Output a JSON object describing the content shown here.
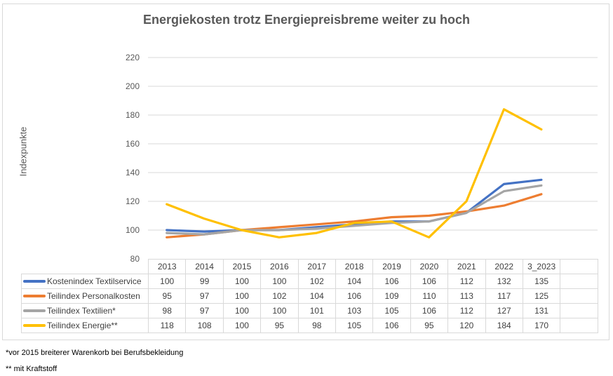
{
  "chart_data": {
    "type": "line",
    "title": "Energiekosten trotz Energiepreisbreme weiter zu hoch",
    "xlabel": "",
    "ylabel": "Indexpunkte",
    "ylim": [
      80,
      220
    ],
    "yticks": [
      80,
      100,
      120,
      140,
      160,
      180,
      200,
      220
    ],
    "ytick_labels": [
      "80",
      "100",
      "120",
      "140",
      "160",
      "180",
      "200",
      "220"
    ],
    "grid": true,
    "legend_placement": "data-table-below",
    "categories": [
      "2013",
      "2014",
      "2015",
      "2016",
      "2017",
      "2018",
      "2019",
      "2020",
      "2021",
      "2022",
      "3_2023",
      ""
    ],
    "series": [
      {
        "name": "Kostenindex Textilservice",
        "color": "#4472C4",
        "values": [
          100,
          99,
          100,
          100,
          102,
          104,
          106,
          106,
          112,
          132,
          135
        ]
      },
      {
        "name": "Teilindex Personalkosten",
        "color": "#ED7D31",
        "values": [
          95,
          97,
          100,
          102,
          104,
          106,
          109,
          110,
          113,
          117,
          125
        ]
      },
      {
        "name": "Teilindex Textilien*",
        "color": "#A5A5A5",
        "values": [
          98,
          97,
          100,
          100,
          101,
          103,
          105,
          106,
          112,
          127,
          131
        ]
      },
      {
        "name": "Teilindex Energie**",
        "color": "#FFC000",
        "values": [
          118,
          108,
          100,
          95,
          98,
          105,
          106,
          95,
          120,
          184,
          170
        ]
      }
    ]
  },
  "footnotes": [
    "*vor 2015 breiterer Warenkorb bei Berufsbekleidung",
    "** mit Kraftstoff"
  ]
}
